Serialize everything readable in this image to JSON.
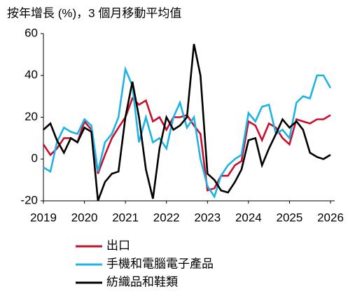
{
  "chart_data": {
    "type": "line",
    "title": "按年增長 (%)，3 個月移動平均值",
    "x": [
      2019.0,
      2019.17,
      2019.33,
      2019.5,
      2019.67,
      2019.83,
      2020.0,
      2020.17,
      2020.33,
      2020.5,
      2020.67,
      2020.83,
      2021.0,
      2021.17,
      2021.33,
      2021.5,
      2021.67,
      2021.83,
      2022.0,
      2022.17,
      2022.33,
      2022.5,
      2022.67,
      2022.83,
      2023.0,
      2023.17,
      2023.33,
      2023.5,
      2023.67,
      2023.83,
      2024.0,
      2024.17,
      2024.33,
      2024.5,
      2024.67,
      2024.83,
      2025.0,
      2025.17,
      2025.33,
      2025.5,
      2025.67,
      2025.83,
      2026.0
    ],
    "series": [
      {
        "name": "出口",
        "color": "#c8102e",
        "values": [
          7,
          2,
          5,
          10,
          10,
          8,
          18,
          14,
          -7,
          2,
          10,
          15,
          20,
          29,
          26,
          28,
          18,
          20,
          14,
          20,
          20,
          21,
          16,
          12,
          -15,
          -14,
          -8,
          -8,
          -3,
          -1,
          18,
          16,
          9,
          17,
          15,
          10,
          7,
          19,
          18,
          17,
          19,
          19,
          21
        ]
      },
      {
        "name": "手機和電腦電子產品",
        "color": "#1fb3e5",
        "values": [
          -4,
          -6,
          8,
          15,
          13,
          12,
          19,
          16,
          -6,
          8,
          12,
          20,
          43,
          35,
          8,
          20,
          8,
          10,
          5,
          20,
          27,
          15,
          20,
          0,
          -13,
          -18,
          -8,
          -3,
          0,
          2,
          22,
          18,
          25,
          26,
          12,
          14,
          10,
          27,
          30,
          29,
          40,
          40,
          34
        ]
      },
      {
        "name": "紡織品和鞋類",
        "color": "#000000",
        "values": [
          14,
          17,
          9,
          3,
          10,
          8,
          15,
          13,
          -20,
          -11,
          -7,
          -6,
          20,
          37,
          20,
          -5,
          -19,
          5,
          20,
          14,
          16,
          20,
          55,
          40,
          -7,
          -10,
          -15,
          -16,
          -11,
          -5,
          9,
          10,
          -3,
          5,
          12,
          19,
          15,
          18,
          14,
          3,
          1,
          0,
          2
        ]
      }
    ],
    "xlim": [
      2019,
      2026
    ],
    "xticks": [
      2019,
      2020,
      2021,
      2022,
      2023,
      2024,
      2025,
      2026
    ],
    "ylim": [
      -20,
      60
    ],
    "yticks": [
      -20,
      0,
      20,
      40,
      60
    ]
  }
}
